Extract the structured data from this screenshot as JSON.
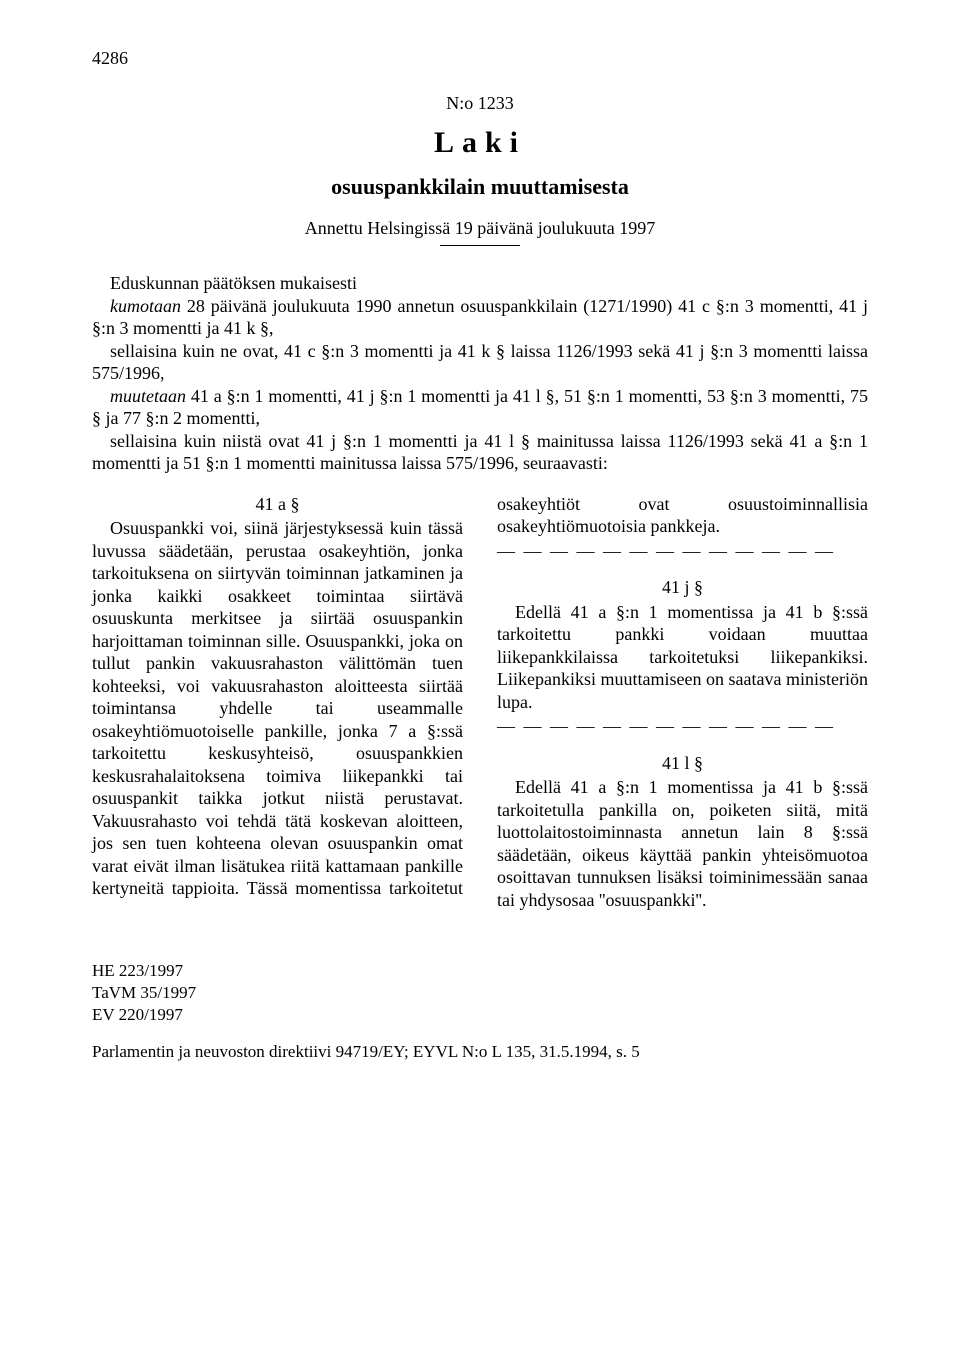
{
  "page_number": "4286",
  "doc_number": "N:o 1233",
  "doc_type": "Laki",
  "doc_title": "osuuspankkilain muuttamisesta",
  "given_at": "Annettu Helsingissä 19 päivänä joulukuuta 1997",
  "preamble": {
    "p1": "Eduskunnan päätöksen mukaisesti",
    "p2a": "kumotaan",
    "p2b": " 28 päivänä joulukuuta 1990 annetun osuuspankkilain (1271/1990) 41 c §:n 3 momentti, 41 j §:n 3 momentti ja 41 k §,",
    "p3": "sellaisina kuin ne ovat, 41 c §:n 3 momentti ja 41 k § laissa 1126/1993 sekä 41 j §:n 3 momentti laissa 575/1996,",
    "p4a": "muutetaan",
    "p4b": " 41 a §:n 1 momentti, 41 j §:n 1 momentti ja 41 l §, 51 §:n 1 momentti, 53 §:n 3 momentti, 75 § ja 77 §:n 2 momentti,",
    "p5": "sellaisina kuin niistä ovat 41 j §:n 1 momentti ja 41 l § mainitussa laissa 1126/1993 sekä 41 a §:n 1 momentti ja 51 §:n 1 momentti mainitussa laissa 575/1996, seuraavasti:"
  },
  "sections": {
    "s41a": {
      "head": "41 a §",
      "text": "Osuuspankki voi, siinä järjestyksessä kuin tässä luvussa säädetään, perustaa osakeyhtiön, jonka tarkoituksena on siirtyvän toiminnan jatkaminen ja jonka kaikki osakkeet toimintaa siirtävä osuuskunta merkitsee ja siirtää osuuspankin harjoittaman toiminnan sille. Osuuspankki, joka on tullut pankin vakuusrahaston välittömän tuen kohteeksi, voi vakuusrahaston aloitteesta siirtää toimintansa yhdelle tai useammalle osakeyhtiömuotoiselle pankille, jonka 7 a §:ssä tarkoitettu keskusyhteisö, osuuspankkien keskusrahalaitoksena toimiva liikepankki tai osuuspankit taikka jotkut niistä perustavat. Vakuusrahasto voi tehdä tätä koskevan aloitteen, jos sen tuen kohteena olevan osuuspankin omat varat eivät ilman lisätukea riitä kattamaan pankille kertyneitä tappioita. Tässä momentissa tarkoitetut osakeyhtiöt ovat osuustoiminnallisia osakeyhtiömuotoisia pankkeja."
    },
    "dashes": "— — — — — — — — — — — — —",
    "s41j": {
      "head": "41 j §",
      "text": "Edellä 41 a §:n 1 momentissa ja 41 b §:ssä tarkoitettu pankki voidaan muuttaa liikepankkilaissa tarkoitetuksi liikepankiksi. Liikepankiksi muuttamiseen on saatava ministeriön lupa."
    },
    "s41l": {
      "head": "41 l §",
      "text": "Edellä 41 a §:n 1 momentissa ja 41 b §:ssä tarkoitetulla pankilla on, poiketen siitä, mitä luottolaitostoiminnasta annetun lain 8 §:ssä säädetään, oikeus käyttää pankin yhteisömuotoa osoittavan tunnuksen lisäksi toiminimessään sanaa tai yhdysosaa ''osuuspankki''."
    }
  },
  "footer": {
    "refs": [
      "HE 223/1997",
      "TaVM 35/1997",
      "EV 220/1997"
    ],
    "note": "Parlamentin ja neuvoston direktiivi 94719/EY; EYVL N:o L 135, 31.5.1994, s. 5"
  }
}
